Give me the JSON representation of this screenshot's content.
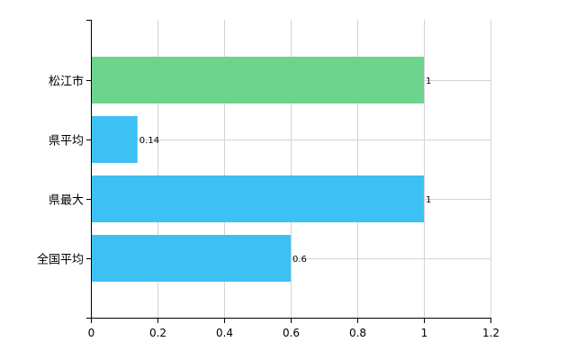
{
  "chart_data": {
    "type": "bar",
    "orientation": "horizontal",
    "categories": [
      "松江市",
      "県平均",
      "県最大",
      "全国平均"
    ],
    "values": [
      1,
      0.14,
      1,
      0.6
    ],
    "data_labels": [
      "1",
      "0.14",
      "1",
      "0.6"
    ],
    "bar_colors": [
      "#6dd48d",
      "#3dc1f5",
      "#3dc1f5",
      "#3dc1f5"
    ],
    "xlim": [
      0,
      1.2
    ],
    "x_ticks": [
      0,
      0.2,
      0.4,
      0.6,
      0.8,
      1,
      1.2
    ],
    "x_tick_labels": [
      "0",
      "0.2",
      "0.4",
      "0.6",
      "0.8",
      "1",
      "1.2"
    ],
    "grid": true,
    "grid_color": "#d4d4d4",
    "legend": "none"
  }
}
